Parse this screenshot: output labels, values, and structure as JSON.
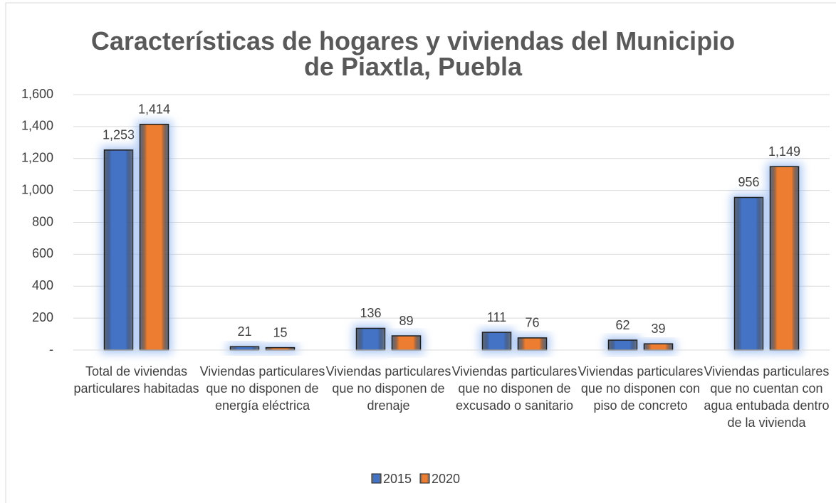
{
  "chart_data": {
    "type": "bar",
    "title": "Características de hogares y viviendas del Municipio de Piaxtla, Puebla",
    "categories": [
      "Total de viviendas particulares habitadas",
      "Viviendas particulares que no disponen de energía eléctrica",
      "Viviendas particulares que no disponen de drenaje",
      "Viviendas particulares que no disponen de excusado o sanitario",
      "Viviendas particulares que no disponen con piso de concreto",
      "Viviendas particulares que no cuentan con agua entubada dentro de la vivienda"
    ],
    "series": [
      {
        "name": "2015",
        "color": "#4472c4",
        "values": [
          1253,
          21,
          136,
          111,
          62,
          956
        ],
        "value_labels": [
          "1,253",
          "21",
          "136",
          "111",
          "62",
          "956"
        ]
      },
      {
        "name": "2020",
        "color": "#ed7d31",
        "values": [
          1414,
          15,
          89,
          76,
          39,
          1149
        ],
        "value_labels": [
          "1,414",
          "15",
          "89",
          "76",
          "39",
          "1,149"
        ]
      }
    ],
    "ylim": [
      0,
      1600
    ],
    "yticks": [
      {
        "value": 0,
        "label": "-"
      },
      200,
      400,
      600,
      800,
      {
        "value": 1000,
        "label": "1,000"
      },
      {
        "value": 1200,
        "label": "1,200"
      },
      {
        "value": 1400,
        "label": "1,400"
      },
      {
        "value": 1600,
        "label": "1,600"
      }
    ],
    "grid": true,
    "legend": "bottom"
  }
}
